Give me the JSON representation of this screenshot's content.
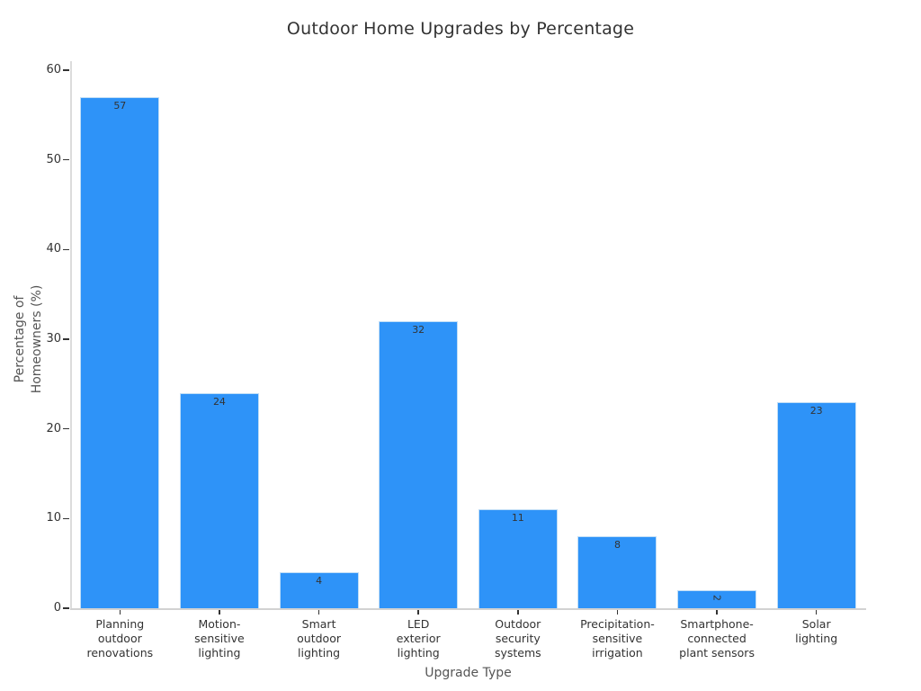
{
  "chart_data": {
    "type": "bar",
    "title": "Outdoor Home Upgrades by Percentage",
    "xlabel": "Upgrade Type",
    "ylabel": "Percentage of Homeowners (%)",
    "ylabel_lines": [
      "Percentage of",
      "Homeowners (%)"
    ],
    "categories": [
      "Planning outdoor renovations",
      "Motion-sensitive lighting",
      "Smart outdoor lighting",
      "LED exterior lighting",
      "Outdoor security systems",
      "Precipitation-sensitive irrigation",
      "Smartphone-connected plant sensors",
      "Solar lighting"
    ],
    "category_lines": [
      [
        "Planning",
        "outdoor",
        "renovations"
      ],
      [
        "Motion-",
        "sensitive",
        "lighting"
      ],
      [
        "Smart",
        "outdoor",
        "lighting"
      ],
      [
        "LED",
        "exterior",
        "lighting"
      ],
      [
        "Outdoor",
        "security",
        "systems"
      ],
      [
        "Precipitation-",
        "sensitive",
        "irrigation"
      ],
      [
        "Smartphone-",
        "connected",
        "plant sensors"
      ],
      [
        "Solar",
        "lighting"
      ]
    ],
    "values": [
      57,
      24,
      4,
      32,
      11,
      8,
      2,
      23
    ],
    "value_label_rotation_deg": [
      0,
      0,
      0,
      0,
      0,
      0,
      90,
      0
    ],
    "yticks": [
      0,
      10,
      20,
      30,
      40,
      50,
      60
    ],
    "ylim": [
      0,
      60
    ],
    "grid": false,
    "legend": null,
    "colors": {
      "background": "#FFFFFF",
      "bar_fill": "#2E93F8",
      "bar_edge": "#BFDDF6",
      "spine": "#DCDCDC",
      "axis_line": "#D2D2D2",
      "tick_text": "#333333",
      "value_label_text": "#333333",
      "axis_label_text": "#555555",
      "title_text": "#333333"
    }
  }
}
